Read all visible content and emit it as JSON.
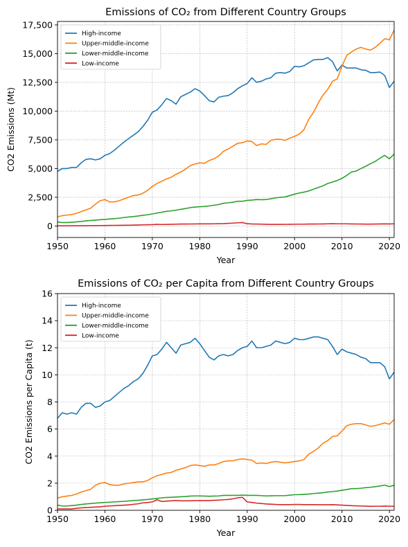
{
  "chart_data": [
    {
      "type": "line",
      "title": "Emissions of CO₂ from Different Country Groups",
      "xlabel": "Year",
      "ylabel": "CO2 Emissions (Mt)",
      "xlim": [
        1950,
        2021
      ],
      "ylim": [
        -1000,
        17800
      ],
      "xticks": [
        1950,
        1960,
        1970,
        1980,
        1990,
        2000,
        2010,
        2020
      ],
      "yticks": [
        0,
        2500,
        5000,
        7500,
        10000,
        12500,
        15000,
        17500
      ],
      "grid": true,
      "legend_position": "upper-left",
      "x": [
        1950,
        1951,
        1952,
        1953,
        1954,
        1955,
        1956,
        1957,
        1958,
        1959,
        1960,
        1961,
        1962,
        1963,
        1964,
        1965,
        1966,
        1967,
        1968,
        1969,
        1970,
        1971,
        1972,
        1973,
        1974,
        1975,
        1976,
        1977,
        1978,
        1979,
        1980,
        1981,
        1982,
        1983,
        1984,
        1985,
        1986,
        1987,
        1988,
        1989,
        1990,
        1991,
        1992,
        1993,
        1994,
        1995,
        1996,
        1997,
        1998,
        1999,
        2000,
        2001,
        2002,
        2003,
        2004,
        2005,
        2006,
        2007,
        2008,
        2009,
        2010,
        2011,
        2012,
        2013,
        2014,
        2015,
        2016,
        2017,
        2018,
        2019,
        2020,
        2021
      ],
      "series": [
        {
          "name": "High-income",
          "color": "#1f77b4",
          "values": [
            4750,
            5000,
            5000,
            5100,
            5100,
            5500,
            5800,
            5850,
            5750,
            5850,
            6150,
            6300,
            6600,
            6950,
            7300,
            7600,
            7900,
            8200,
            8650,
            9200,
            9900,
            10100,
            10550,
            11100,
            10900,
            10600,
            11250,
            11450,
            11650,
            11950,
            11750,
            11350,
            10900,
            10800,
            11200,
            11300,
            11350,
            11600,
            11950,
            12200,
            12400,
            12900,
            12500,
            12600,
            12800,
            12900,
            13300,
            13350,
            13300,
            13450,
            13900,
            13850,
            13950,
            14200,
            14450,
            14500,
            14500,
            14650,
            14300,
            13500,
            14000,
            13750,
            13750,
            13750,
            13600,
            13550,
            13350,
            13350,
            13400,
            13100,
            12050,
            12600
          ]
        },
        {
          "name": "Upper-middle-income",
          "color": "#ff7f0e",
          "values": [
            800,
            900,
            950,
            1000,
            1100,
            1250,
            1400,
            1550,
            1900,
            2200,
            2300,
            2100,
            2100,
            2200,
            2350,
            2500,
            2650,
            2700,
            2850,
            3100,
            3450,
            3700,
            3900,
            4100,
            4250,
            4500,
            4700,
            4950,
            5250,
            5400,
            5500,
            5450,
            5700,
            5850,
            6100,
            6500,
            6700,
            6950,
            7200,
            7250,
            7400,
            7350,
            7000,
            7150,
            7100,
            7450,
            7550,
            7550,
            7450,
            7650,
            7800,
            8000,
            8400,
            9300,
            9900,
            10700,
            11400,
            11900,
            12600,
            12800,
            13900,
            14850,
            15150,
            15400,
            15550,
            15400,
            15300,
            15550,
            15900,
            16300,
            16200,
            17050
          ]
        },
        {
          "name": "Lower-middle-income",
          "color": "#2ca02c",
          "values": [
            350,
            300,
            300,
            330,
            360,
            400,
            450,
            480,
            510,
            550,
            580,
            610,
            640,
            680,
            740,
            780,
            820,
            870,
            930,
            980,
            1050,
            1130,
            1200,
            1280,
            1320,
            1380,
            1450,
            1520,
            1600,
            1650,
            1680,
            1700,
            1750,
            1810,
            1870,
            1980,
            2020,
            2070,
            2150,
            2150,
            2230,
            2260,
            2300,
            2290,
            2300,
            2370,
            2450,
            2500,
            2530,
            2650,
            2770,
            2870,
            2950,
            3050,
            3200,
            3350,
            3500,
            3700,
            3830,
            3960,
            4150,
            4400,
            4700,
            4780,
            5000,
            5200,
            5420,
            5620,
            5900,
            6150,
            5850,
            6250
          ]
        },
        {
          "name": "Low-income",
          "color": "#d62728",
          "values": [
            20,
            20,
            20,
            20,
            20,
            30,
            30,
            35,
            35,
            40,
            45,
            50,
            55,
            60,
            65,
            70,
            80,
            90,
            100,
            110,
            120,
            150,
            130,
            140,
            150,
            160,
            170,
            170,
            175,
            180,
            190,
            185,
            185,
            190,
            200,
            210,
            230,
            250,
            280,
            300,
            200,
            180,
            170,
            160,
            150,
            140,
            140,
            140,
            145,
            150,
            160,
            160,
            160,
            170,
            170,
            175,
            180,
            190,
            200,
            190,
            190,
            190,
            180,
            175,
            170,
            165,
            165,
            170,
            180,
            185,
            180,
            190
          ]
        }
      ]
    },
    {
      "type": "line",
      "title": "Emissions of CO₂ per Capita from Different Country Groups",
      "xlabel": "Year",
      "ylabel": "CO2 Emissions per Capita (t)",
      "xlim": [
        1950,
        2021
      ],
      "ylim": [
        0,
        16
      ],
      "xticks": [
        1950,
        1960,
        1970,
        1980,
        1990,
        2000,
        2010,
        2020
      ],
      "yticks": [
        0,
        2,
        4,
        6,
        8,
        10,
        12,
        14,
        16
      ],
      "grid": true,
      "legend_position": "upper-left",
      "x": [
        1950,
        1951,
        1952,
        1953,
        1954,
        1955,
        1956,
        1957,
        1958,
        1959,
        1960,
        1961,
        1962,
        1963,
        1964,
        1965,
        1966,
        1967,
        1968,
        1969,
        1970,
        1971,
        1972,
        1973,
        1974,
        1975,
        1976,
        1977,
        1978,
        1979,
        1980,
        1981,
        1982,
        1983,
        1984,
        1985,
        1986,
        1987,
        1988,
        1989,
        1990,
        1991,
        1992,
        1993,
        1994,
        1995,
        1996,
        1997,
        1998,
        1999,
        2000,
        2001,
        2002,
        2003,
        2004,
        2005,
        2006,
        2007,
        2008,
        2009,
        2010,
        2011,
        2012,
        2013,
        2014,
        2015,
        2016,
        2017,
        2018,
        2019,
        2020,
        2021
      ],
      "series": [
        {
          "name": "High-income",
          "color": "#1f77b4",
          "values": [
            6.8,
            7.2,
            7.1,
            7.2,
            7.1,
            7.6,
            7.9,
            7.9,
            7.6,
            7.7,
            8.0,
            8.1,
            8.4,
            8.7,
            9.0,
            9.2,
            9.5,
            9.7,
            10.1,
            10.7,
            11.4,
            11.5,
            11.9,
            12.4,
            12.0,
            11.6,
            12.2,
            12.3,
            12.4,
            12.7,
            12.3,
            11.8,
            11.3,
            11.1,
            11.4,
            11.5,
            11.4,
            11.5,
            11.8,
            12.0,
            12.1,
            12.5,
            12.0,
            12.0,
            12.1,
            12.2,
            12.5,
            12.4,
            12.3,
            12.4,
            12.7,
            12.6,
            12.6,
            12.7,
            12.8,
            12.8,
            12.7,
            12.6,
            12.1,
            11.5,
            11.9,
            11.7,
            11.6,
            11.5,
            11.3,
            11.2,
            10.9,
            10.9,
            10.9,
            10.6,
            9.7,
            10.2
          ]
        },
        {
          "name": "Upper-middle-income",
          "color": "#ff7f0e",
          "values": [
            0.9,
            1.0,
            1.05,
            1.1,
            1.2,
            1.35,
            1.45,
            1.55,
            1.85,
            2.0,
            2.05,
            1.9,
            1.85,
            1.85,
            1.95,
            2.0,
            2.05,
            2.1,
            2.1,
            2.2,
            2.4,
            2.55,
            2.65,
            2.75,
            2.8,
            2.95,
            3.05,
            3.15,
            3.3,
            3.35,
            3.3,
            3.25,
            3.35,
            3.35,
            3.45,
            3.6,
            3.65,
            3.65,
            3.75,
            3.8,
            3.75,
            3.7,
            3.45,
            3.5,
            3.45,
            3.55,
            3.6,
            3.55,
            3.5,
            3.55,
            3.6,
            3.65,
            3.75,
            4.15,
            4.35,
            4.6,
            4.95,
            5.15,
            5.45,
            5.5,
            5.85,
            6.25,
            6.35,
            6.4,
            6.4,
            6.3,
            6.2,
            6.25,
            6.35,
            6.45,
            6.35,
            6.7
          ]
        },
        {
          "name": "Lower-middle-income",
          "color": "#2ca02c",
          "values": [
            0.38,
            0.32,
            0.32,
            0.35,
            0.38,
            0.43,
            0.47,
            0.5,
            0.53,
            0.56,
            0.58,
            0.6,
            0.62,
            0.64,
            0.66,
            0.69,
            0.72,
            0.74,
            0.77,
            0.8,
            0.84,
            0.88,
            0.92,
            0.95,
            0.96,
            0.98,
            1.0,
            1.02,
            1.05,
            1.06,
            1.06,
            1.05,
            1.04,
            1.05,
            1.06,
            1.1,
            1.1,
            1.1,
            1.1,
            1.12,
            1.1,
            1.1,
            1.1,
            1.08,
            1.06,
            1.07,
            1.08,
            1.08,
            1.08,
            1.12,
            1.15,
            1.16,
            1.18,
            1.2,
            1.24,
            1.27,
            1.3,
            1.35,
            1.38,
            1.42,
            1.48,
            1.53,
            1.6,
            1.6,
            1.63,
            1.67,
            1.7,
            1.74,
            1.8,
            1.86,
            1.75,
            1.85
          ]
        },
        {
          "name": "Low-income",
          "color": "#d62728",
          "values": [
            0.1,
            0.1,
            0.1,
            0.1,
            0.15,
            0.18,
            0.2,
            0.22,
            0.24,
            0.26,
            0.3,
            0.32,
            0.34,
            0.36,
            0.38,
            0.4,
            0.44,
            0.48,
            0.55,
            0.58,
            0.62,
            0.78,
            0.65,
            0.68,
            0.7,
            0.72,
            0.7,
            0.7,
            0.7,
            0.72,
            0.72,
            0.72,
            0.72,
            0.74,
            0.75,
            0.78,
            0.8,
            0.85,
            0.92,
            0.96,
            0.62,
            0.58,
            0.53,
            0.5,
            0.47,
            0.45,
            0.43,
            0.42,
            0.42,
            0.42,
            0.43,
            0.43,
            0.42,
            0.42,
            0.42,
            0.41,
            0.41,
            0.41,
            0.42,
            0.4,
            0.38,
            0.36,
            0.34,
            0.33,
            0.32,
            0.31,
            0.29,
            0.3,
            0.3,
            0.31,
            0.3,
            0.3
          ]
        }
      ]
    }
  ]
}
